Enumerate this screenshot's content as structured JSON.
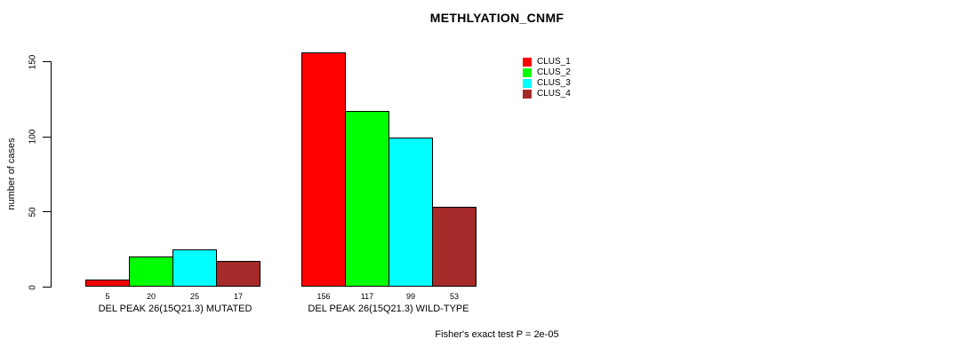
{
  "chart_data": {
    "type": "bar",
    "title": "METHLYATION_CNMF",
    "ylabel": "number of cases",
    "xlabel": "",
    "yticks": [
      0,
      50,
      100,
      150
    ],
    "ylim": [
      0,
      156
    ],
    "grid": false,
    "legend_position": "top-right",
    "categories": [
      "DEL PEAK 26(15Q21.3) MUTATED",
      "DEL PEAK 26(15Q21.3) WILD-TYPE"
    ],
    "series": [
      {
        "name": "CLUS_1",
        "color": "#FF0000",
        "values": [
          5,
          156
        ]
      },
      {
        "name": "CLUS_2",
        "color": "#00FF00",
        "values": [
          20,
          117
        ]
      },
      {
        "name": "CLUS_3",
        "color": "#00FFFF",
        "values": [
          25,
          99
        ]
      },
      {
        "name": "CLUS_4",
        "color": "#A52A2A",
        "values": [
          17,
          53
        ]
      }
    ],
    "bar_value_labels": {
      "group_0": [
        "5",
        "20",
        "25",
        "17"
      ],
      "group_1": [
        "156",
        "117",
        "99",
        "53"
      ]
    },
    "annotation": "Fisher's exact test P = 2e-05"
  }
}
